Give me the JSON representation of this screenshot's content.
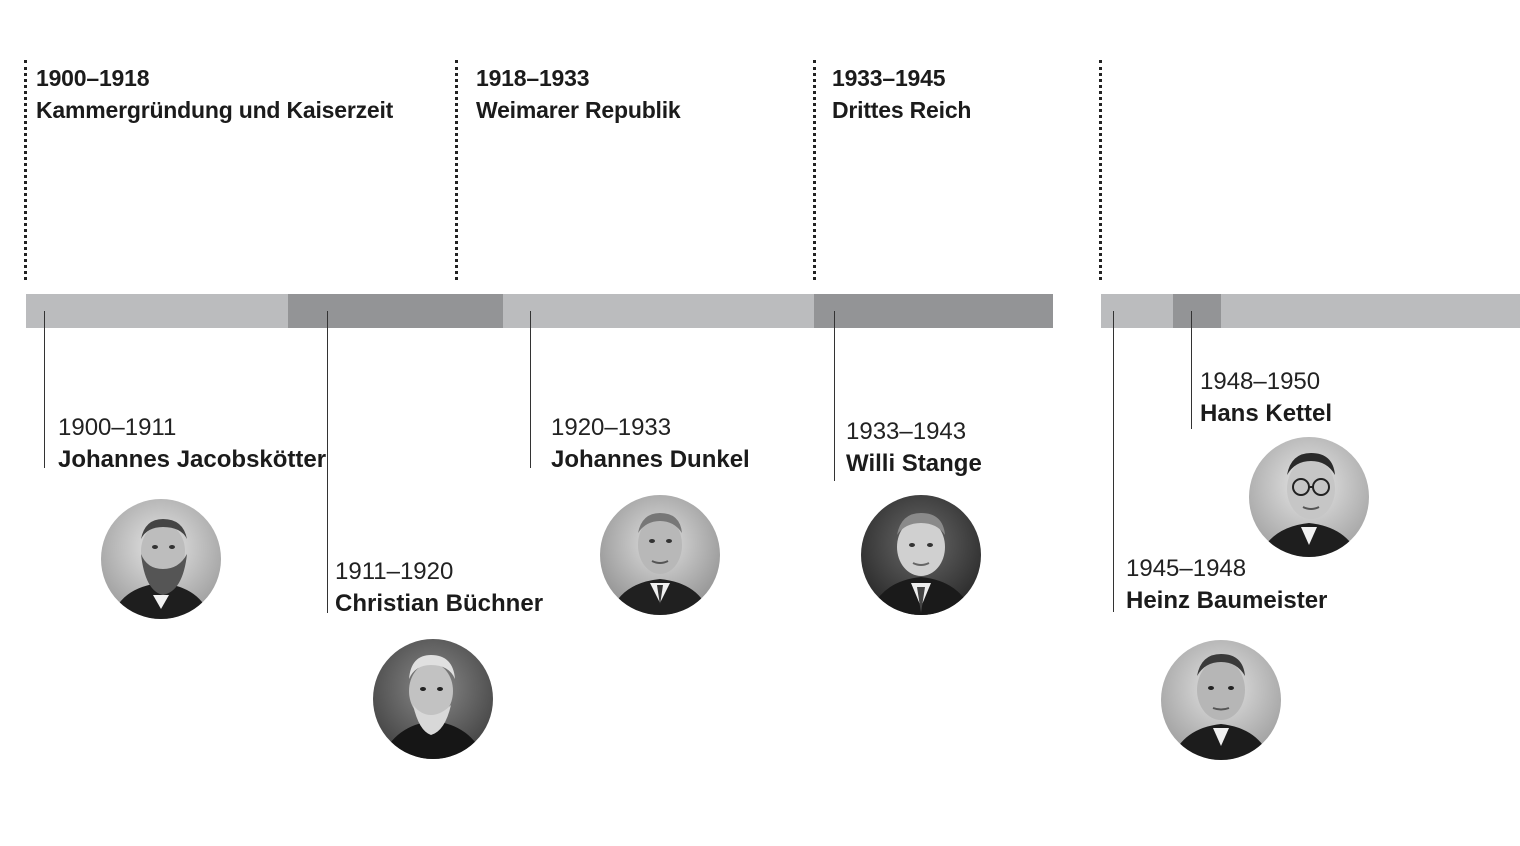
{
  "eras": [
    {
      "years": "1900–1918",
      "title": "Kammergründung und Kaiserzeit"
    },
    {
      "years": "1918–1933",
      "title": "Weimarer Republik"
    },
    {
      "years": "1933–1945",
      "title": "Drittes Reich"
    }
  ],
  "people": [
    {
      "years": "1900–1911",
      "name": "Johannes Jacobskötter",
      "portrait": "bearded-man-portrait"
    },
    {
      "years": "1911–1920",
      "name": "Christian Büchner",
      "portrait": "bearded-man-portrait"
    },
    {
      "years": "1920–1933",
      "name": "Johannes Dunkel",
      "portrait": "man-portrait"
    },
    {
      "years": "1933–1943",
      "name": "Willi Stange",
      "portrait": "man-portrait"
    },
    {
      "years": "1945–1948",
      "name": "Heinz Baumeister",
      "portrait": "man-portrait"
    },
    {
      "years": "1948–1950",
      "name": "Hans Kettel",
      "portrait": "man-with-glasses-portrait"
    }
  ],
  "colors": {
    "bar_light": "#bbbcbe",
    "bar_dark": "#939496",
    "text": "#1b1b1b"
  }
}
